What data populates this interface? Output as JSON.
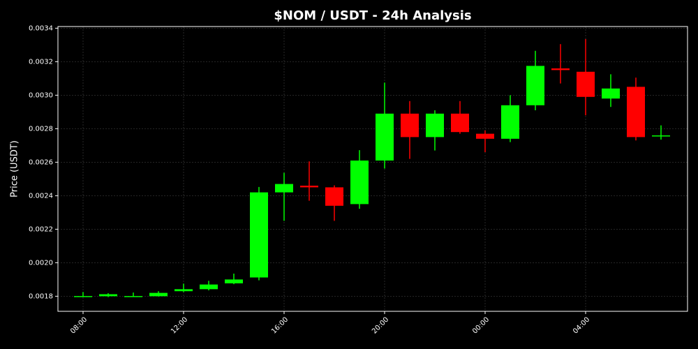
{
  "chart_data": {
    "type": "candlestick",
    "title": "$NOM / USDT - 24h Analysis",
    "y_label": "Price (USDT)",
    "categories": [
      "08:00",
      null,
      null,
      null,
      "12:00",
      null,
      null,
      null,
      "16:00",
      null,
      null,
      null,
      "20:00",
      null,
      null,
      null,
      "00:00",
      null,
      null,
      null,
      "04:00",
      null,
      null,
      null
    ],
    "open": [
      0.0018,
      0.0018,
      0.0018,
      0.0018,
      0.00183,
      0.001842,
      0.001877,
      0.001912,
      0.00242,
      0.00246,
      0.00245,
      0.00235,
      0.00261,
      0.00289,
      0.00275,
      0.00289,
      0.00277,
      0.00274,
      0.00294,
      0.00316,
      0.00314,
      0.00298,
      0.00305,
      0.002755
    ],
    "high": [
      0.001825,
      0.001818,
      0.001822,
      0.00183,
      0.001875,
      0.001892,
      0.001935,
      0.002452,
      0.002537,
      0.002605,
      0.002462,
      0.002672,
      0.003075,
      0.002965,
      0.00291,
      0.002965,
      0.00279,
      0.003,
      0.003265,
      0.003305,
      0.003335,
      0.003125,
      0.003105,
      0.00282
    ],
    "low": [
      0.001795,
      0.001795,
      0.001797,
      0.001798,
      0.001825,
      0.001835,
      0.001872,
      0.001895,
      0.00225,
      0.00237,
      0.00225,
      0.002322,
      0.002562,
      0.00262,
      0.00267,
      0.00277,
      0.00266,
      0.00272,
      0.00291,
      0.00307,
      0.00288,
      0.00293,
      0.00273,
      0.002735
    ],
    "close": [
      0.001801,
      0.001812,
      0.001801,
      0.00182,
      0.001842,
      0.00187,
      0.0019,
      0.00242,
      0.00247,
      0.00245,
      0.00234,
      0.00261,
      0.00289,
      0.00275,
      0.00289,
      0.00278,
      0.00274,
      0.00294,
      0.003175,
      0.00315,
      0.00299,
      0.00304,
      0.00275,
      0.00276
    ],
    "up_color": "#00ff00",
    "down_color": "#ff0000",
    "ylim": [
      0.00171,
      0.00341
    ],
    "yticks": [
      0.0018,
      {
        "value": 0.002,
        "label": "0.0020"
      },
      0.0022,
      0.0024,
      0.0026,
      0.0028,
      {
        "value": 0.003,
        "label": "0.0030"
      },
      0.0032,
      0.0034
    ],
    "grid": true
  }
}
